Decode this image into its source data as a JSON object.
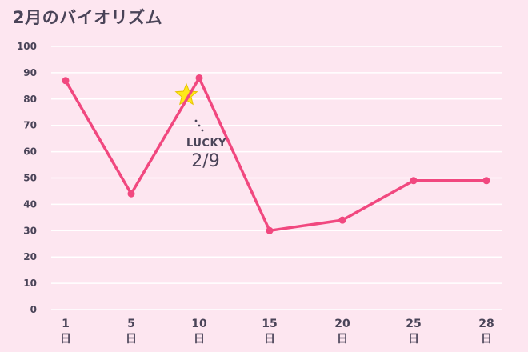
{
  "title": "2月のバイオリズム",
  "chart_data": {
    "type": "line",
    "title": "2月のバイオリズム",
    "xlabel": "",
    "ylabel": "",
    "ylim": [
      0,
      100
    ],
    "yticks": [
      0,
      10,
      20,
      30,
      40,
      50,
      60,
      70,
      80,
      90,
      100
    ],
    "grid": true,
    "x_tick_numbers": [
      "1",
      "5",
      "10",
      "15",
      "20",
      "25",
      "28"
    ],
    "x_tick_unit": "日",
    "series": [
      {
        "name": "",
        "color": "#f1487f",
        "points": [
          {
            "x": 1,
            "y": 87
          },
          {
            "x": 5,
            "y": 44
          },
          {
            "x": 10,
            "y": 88
          },
          {
            "x": 15,
            "y": 30
          },
          {
            "x": 20,
            "y": 34
          },
          {
            "x": 25,
            "y": 49
          },
          {
            "x": 28,
            "y": 49
          }
        ]
      }
    ],
    "annotation": {
      "label": "LUCKY",
      "date": "2/9",
      "marker": "star-icon",
      "marker_color": "#ffe81a"
    }
  }
}
